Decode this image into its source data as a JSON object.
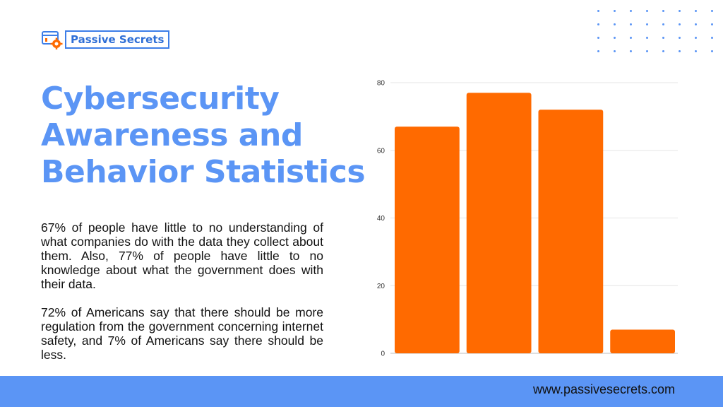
{
  "brand": {
    "name": "Passive Secrets",
    "logo_icon": "browser-gear-icon",
    "accent_color": "#5b95f5"
  },
  "title_lines": [
    "Cybersecurity",
    "Awareness and",
    "Behavior Statistics"
  ],
  "paragraphs": [
    "67% of people have little to no understanding of what companies do with the data they collect about them. Also, 77% of people have little to no knowledge about what the government does with their data.",
    "72% of Americans say that there should be more regulation from the government concerning internet safety, and 7% of Americans say there should be less."
  ],
  "footer": {
    "url": "www.passivesecrets.com"
  },
  "chart_data": {
    "type": "bar",
    "title": "",
    "xlabel": "",
    "ylabel": "",
    "categories": [
      "",
      "",
      "",
      ""
    ],
    "values": [
      67,
      77,
      72,
      7
    ],
    "ylim": [
      0,
      80
    ],
    "yticks": [
      0,
      20,
      40,
      60,
      80
    ],
    "grid": true,
    "bar_color": "#ff6a00"
  }
}
